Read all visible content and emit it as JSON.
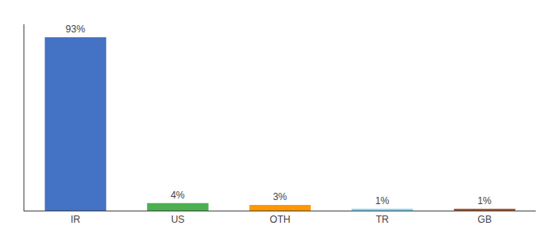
{
  "chart_data": {
    "type": "bar",
    "categories": [
      "IR",
      "US",
      "OTH",
      "TR",
      "GB"
    ],
    "values": [
      93,
      4,
      3,
      1,
      1
    ],
    "value_labels": [
      "93%",
      "4%",
      "3%",
      "1%",
      "1%"
    ],
    "colors": [
      "#4472C4",
      "#4CAF50",
      "#FF9800",
      "#81D4FA",
      "#A0522D"
    ],
    "ylim": [
      0,
      100
    ],
    "data_labels": true,
    "tick_labels": "x",
    "grid": false
  }
}
